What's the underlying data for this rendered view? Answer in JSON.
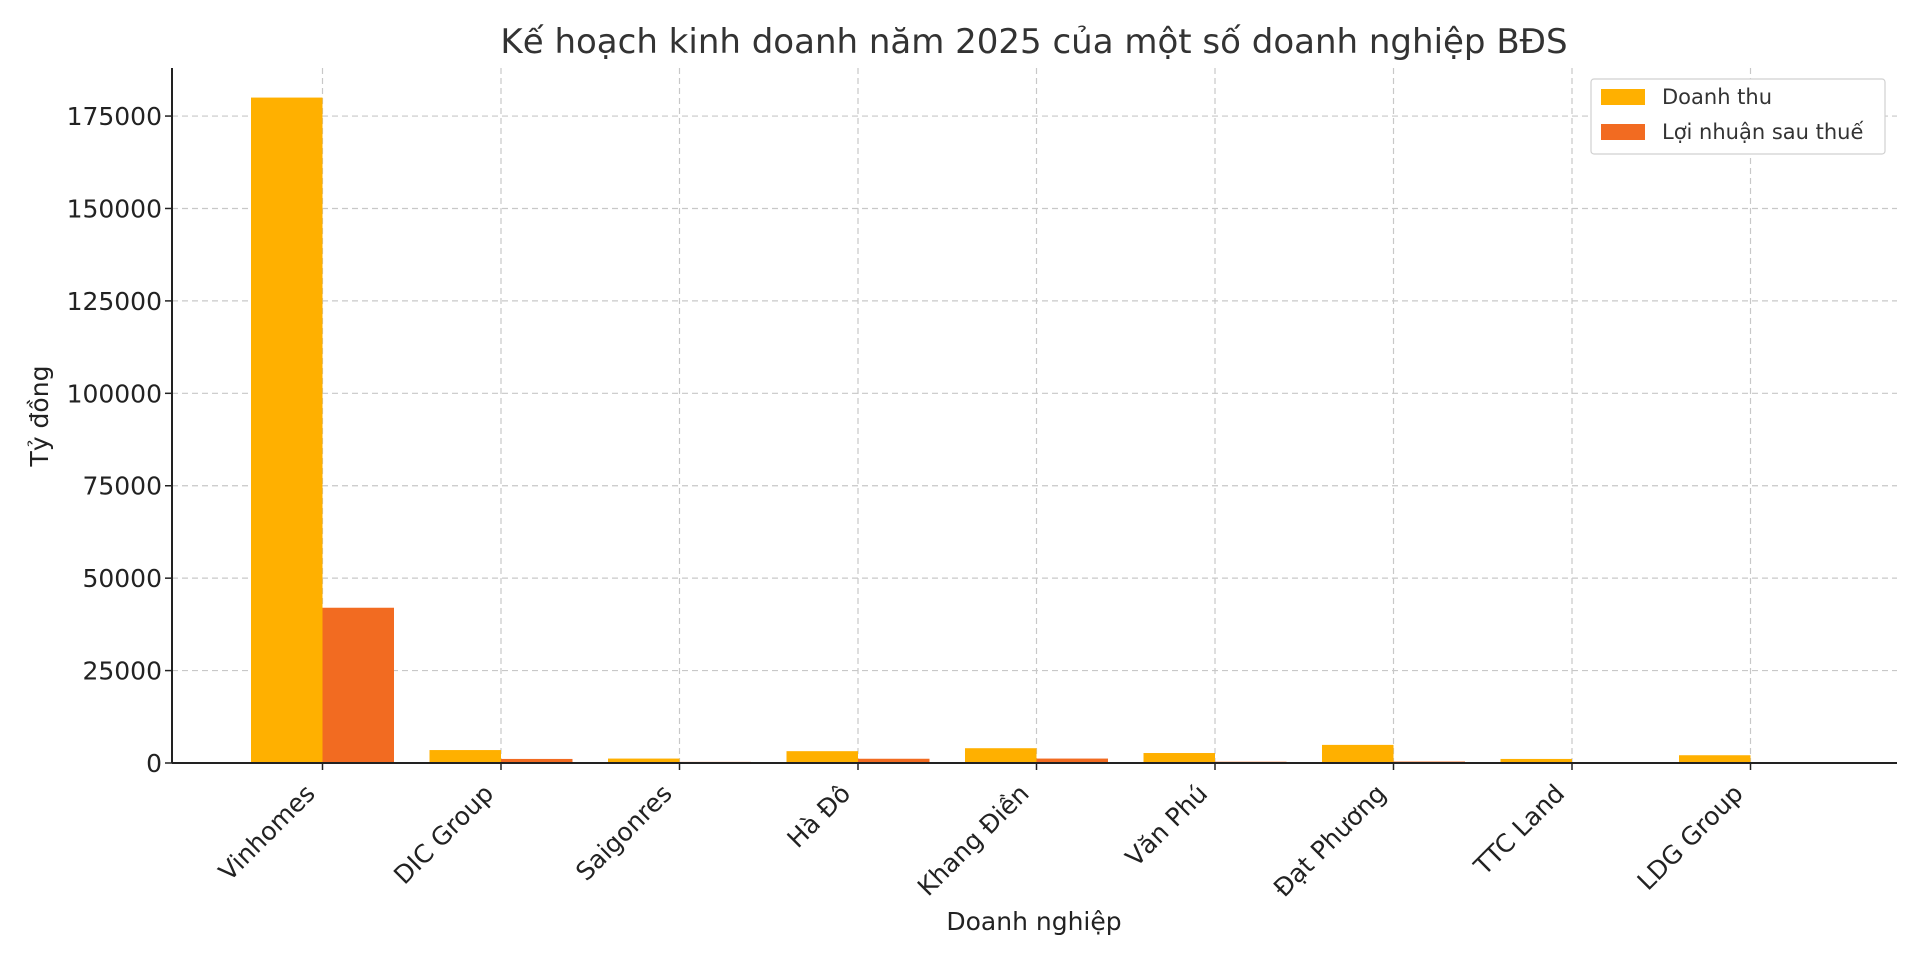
{
  "chart_data": {
    "type": "bar",
    "title": "Kế hoạch kinh doanh năm 2025 của một số doanh nghiệp BĐS",
    "xlabel": "Doanh nghiệp",
    "ylabel": "Tỷ đồng",
    "categories": [
      "Vinhomes",
      "DIC Group",
      "Saigonres",
      "Hà Đô",
      "Khang Điền",
      "Văn Phú",
      "Đạt Phương",
      "TTC Land",
      "LDG Group"
    ],
    "series": [
      {
        "name": "Doanh thu",
        "color": "#FFB000",
        "values": [
          180000,
          3500,
          1200,
          3200,
          4000,
          2700,
          4900,
          1100,
          2100
        ]
      },
      {
        "name": "Lợi nhuận sau thuế",
        "color": "#F26B21",
        "values": [
          42000,
          1100,
          300,
          1150,
          1200,
          350,
          400,
          120,
          80
        ]
      }
    ],
    "ylim": [
      0,
      188000
    ],
    "yticks": [
      0,
      25000,
      50000,
      75000,
      100000,
      125000,
      150000,
      175000
    ],
    "grid": true,
    "legend_position": "top-right"
  }
}
